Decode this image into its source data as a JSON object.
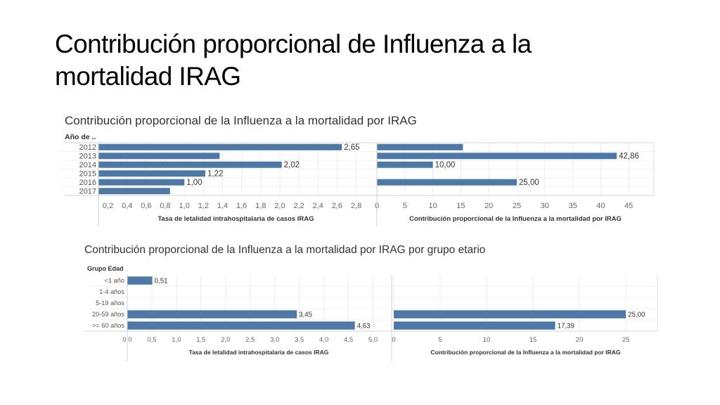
{
  "slide": {
    "title_line1": "Contribución proporcional de Influenza a la",
    "title_line2": "mortalidad IRAG"
  },
  "chart_data": [
    {
      "type": "bar",
      "title": "Contribución proporcional de la Influenza a la mortalidad por IRAG",
      "row_header": "Año de ..",
      "categories": [
        "2012",
        "2013",
        "2014",
        "2015",
        "2016",
        "2017"
      ],
      "panels": [
        {
          "xlabel": "Tasa de letalidad  intrahospitalaria de casos IRAG",
          "xlim": [
            0.1,
            2.98
          ],
          "ticks": [
            "0,2",
            "0,4",
            "0,6",
            "0,8",
            "1,0",
            "1,2",
            "1,4",
            "1,6",
            "1,8",
            "2,0",
            "2,2",
            "2,4",
            "2,6",
            "2,8"
          ],
          "values": [
            2.65,
            1.37,
            2.02,
            1.22,
            1.0,
            0.85
          ],
          "labels": [
            "2,65",
            "",
            "2,02",
            "1,22",
            "1,00",
            ""
          ]
        },
        {
          "xlabel": "Contribución proporcional de la Influenza a la mortalidad por IRAG",
          "xlim": [
            0,
            49.5
          ],
          "ticks": [
            "0",
            "5",
            "10",
            "15",
            "20",
            "25",
            "30",
            "35",
            "40",
            "45"
          ],
          "values": [
            15.38,
            42.86,
            10.0,
            null,
            25.0,
            null
          ],
          "labels": [
            "",
            "42,86",
            "10,00",
            "",
            "25,00",
            ""
          ]
        }
      ],
      "bar_color": "#4e79a7"
    },
    {
      "type": "bar",
      "title": "Contribución proporcional de la Influenza a la mortalidad por IRAG  por grupo etario",
      "row_header": "Grupo Edad",
      "categories": [
        "<1 año",
        "1-4 años",
        "5-19 años",
        "20-59 años",
        ">= 60 años"
      ],
      "panels": [
        {
          "xlabel": "Tasa de letalidad  intrahospitalaria de casos IRAG",
          "xlim": [
            0,
            5.35
          ],
          "ticks": [
            "0,0",
            "0,5",
            "1,0",
            "1,5",
            "2,0",
            "2,5",
            "3,0",
            "3,5",
            "4,0",
            "4,5",
            "5,0"
          ],
          "values": [
            0.51,
            null,
            null,
            3.45,
            4.63
          ],
          "labels": [
            "0,51",
            "",
            "",
            "3,45",
            "4,63"
          ]
        },
        {
          "xlabel": "Contribución proporcional de la Influenza a la mortalidad por IRAG",
          "xlim": [
            0,
            28.4
          ],
          "ticks": [
            "0",
            "5",
            "10",
            "15",
            "20",
            "25"
          ],
          "values": [
            null,
            null,
            null,
            25.0,
            17.39
          ],
          "labels": [
            "",
            "",
            "",
            "25,00",
            "17,39"
          ]
        }
      ],
      "bar_color": "#4e79a7"
    }
  ]
}
